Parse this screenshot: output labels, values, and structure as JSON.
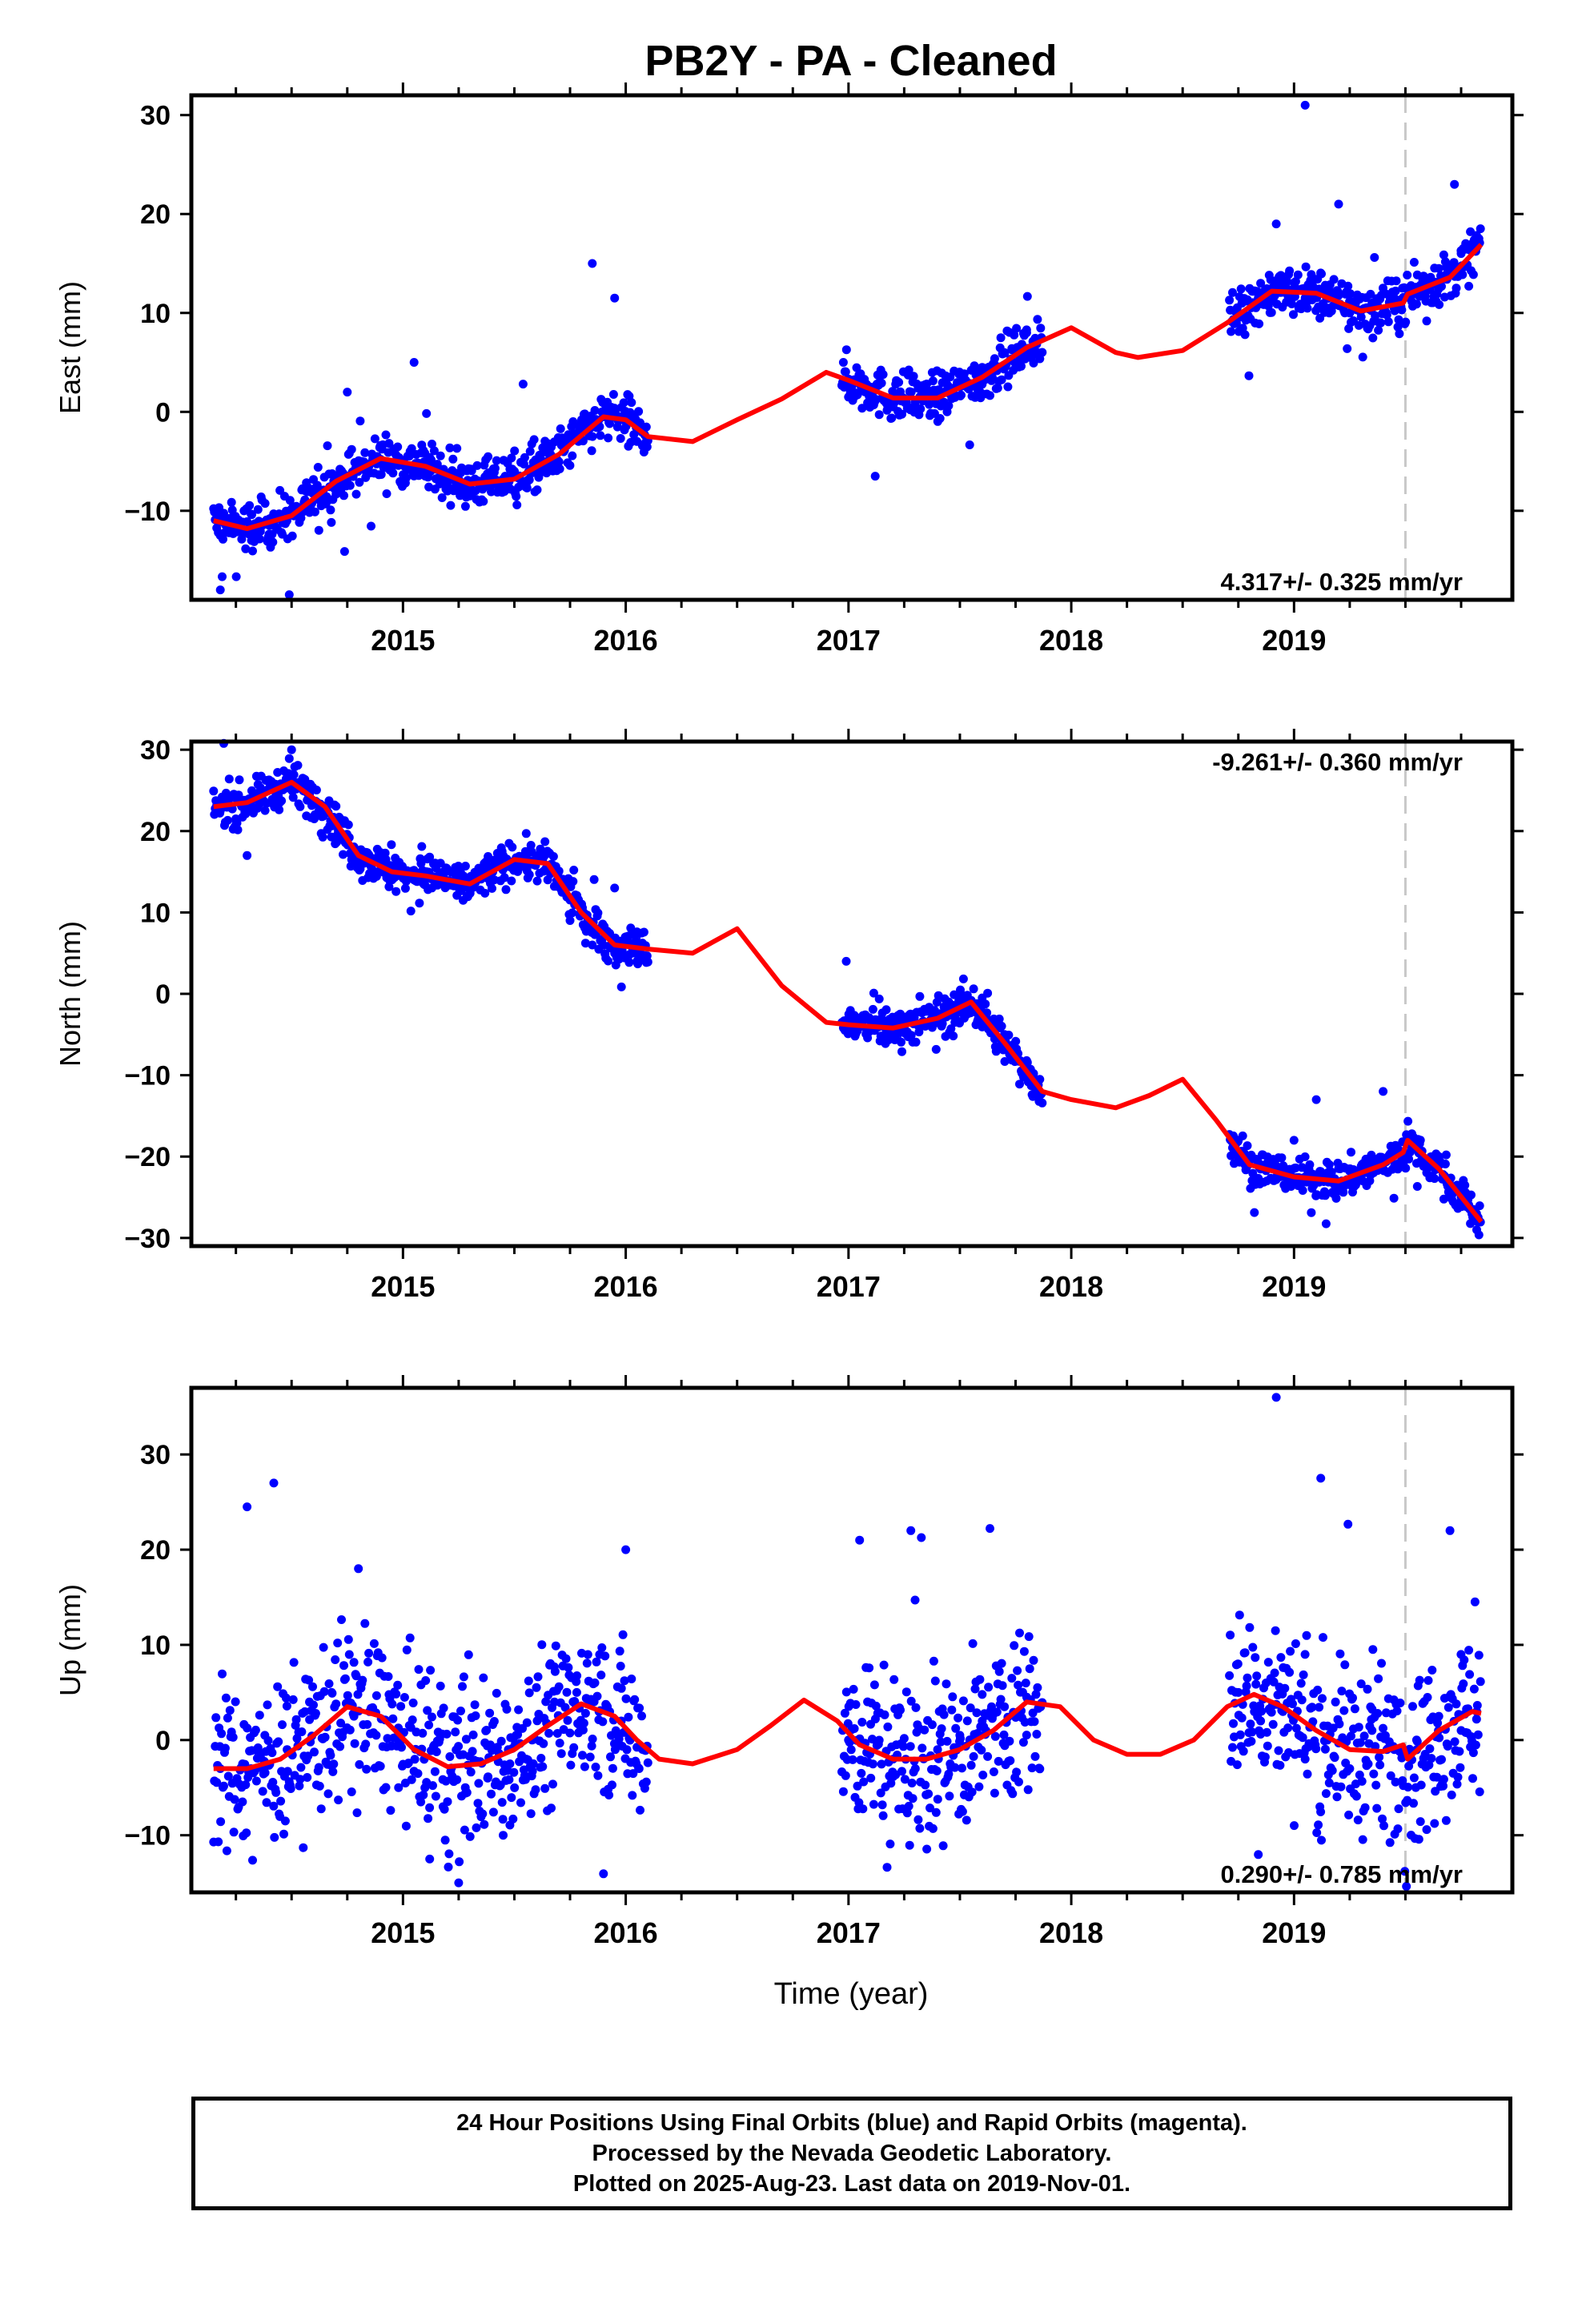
{
  "title": "PB2Y  - PA - Cleaned",
  "xlabel": "Time (year)",
  "footer": {
    "line1": "24 Hour Positions Using Final Orbits (blue) and Rapid Orbits (magenta).",
    "line2": "Processed by the Nevada Geodetic Laboratory.",
    "line3": "Plotted on 2025-Aug-23. Last data on 2019-Nov-01."
  },
  "colors": {
    "points": "#0000ff",
    "model": "#ff0000",
    "equipment_change": "#c8c8c8",
    "frame": "#000000"
  },
  "chart_data": [
    {
      "type": "scatter",
      "name": "east",
      "ylabel": "East (mm)",
      "rate_label": "4.317+/- 0.325 mm/yr",
      "rate_position": "bottom-right",
      "xlim": [
        2014.05,
        2019.98
      ],
      "ylim": [
        -19,
        32
      ],
      "yticks": [
        -10,
        0,
        10,
        20,
        30
      ],
      "xticks": [
        2015,
        2016,
        2017,
        2018,
        2019
      ],
      "vertical_line_x": 2019.5,
      "segments": [
        [
          2014.15,
          2016.1
        ],
        [
          2016.97,
          2017.87
        ],
        [
          2018.71,
          2019.84
        ]
      ],
      "model_line": {
        "name": "model",
        "x": [
          2014.15,
          2014.3,
          2014.5,
          2014.7,
          2014.9,
          2015.1,
          2015.3,
          2015.5,
          2015.7,
          2015.9,
          2016.0,
          2016.1,
          2016.3,
          2016.5,
          2016.7,
          2016.9,
          2017.0,
          2017.2,
          2017.4,
          2017.6,
          2017.8,
          2018.0,
          2018.2,
          2018.3,
          2018.5,
          2018.7,
          2018.9,
          2019.1,
          2019.3,
          2019.49,
          2019.51,
          2019.7,
          2019.84
        ],
        "y": [
          -11.0,
          -11.8,
          -10.5,
          -7.0,
          -4.7,
          -5.5,
          -7.3,
          -6.8,
          -4.3,
          -0.5,
          -0.8,
          -2.5,
          -3.0,
          -0.8,
          1.3,
          4.0,
          3.2,
          1.4,
          1.4,
          3.5,
          6.5,
          8.5,
          6.0,
          5.5,
          6.2,
          9.0,
          12.2,
          12.0,
          10.2,
          11.0,
          11.9,
          13.6,
          16.9
        ]
      },
      "points": {
        "name": "daily positions",
        "x": [
          2014.18,
          2014.25,
          2014.32,
          2014.4,
          2014.5,
          2014.6,
          2014.7,
          2014.8,
          2014.9,
          2015.0,
          2015.1,
          2015.2,
          2015.3,
          2015.4,
          2015.5,
          2015.6,
          2015.7,
          2015.8,
          2015.9,
          2016.0,
          2016.08,
          2014.18,
          2014.75,
          2015.05,
          2015.85,
          2015.95,
          2017.0,
          2017.1,
          2017.2,
          2017.3,
          2017.4,
          2017.5,
          2017.6,
          2017.7,
          2017.8,
          2017.12,
          2018.75,
          2018.85,
          2018.95,
          2019.05,
          2019.15,
          2019.25,
          2019.35,
          2019.45,
          2019.55,
          2019.65,
          2019.75,
          2019.82,
          2018.92,
          2019.05,
          2019.2,
          2019.72
        ],
        "y": [
          -12.5,
          -11.0,
          -13.0,
          -11.5,
          -10.0,
          -8.0,
          -6.5,
          -5.5,
          -4.8,
          -5.0,
          -6.5,
          -8.0,
          -8.5,
          -7.0,
          -6.0,
          -5.0,
          -3.0,
          -1.5,
          -0.5,
          -1.0,
          -2.0,
          -18.0,
          2.0,
          5.0,
          15.0,
          11.5,
          1.5,
          2.5,
          0.5,
          1.0,
          1.5,
          2.5,
          4.5,
          6.0,
          8.0,
          -6.5,
          10.0,
          13.0,
          12.5,
          11.5,
          10.5,
          10.0,
          11.0,
          11.5,
          12.5,
          14.5,
          16.0,
          17.0,
          19.0,
          31.0,
          21.0,
          23.0
        ]
      }
    },
    {
      "type": "scatter",
      "name": "north",
      "ylabel": "North (mm)",
      "rate_label": "-9.261+/- 0.360 mm/yr",
      "rate_position": "top-right",
      "xlim": [
        2014.05,
        2019.98
      ],
      "ylim": [
        -31,
        31
      ],
      "yticks": [
        -30,
        -20,
        -10,
        0,
        10,
        20,
        30
      ],
      "xticks": [
        2015,
        2016,
        2017,
        2018,
        2019
      ],
      "vertical_line_x": 2019.5,
      "segments": [
        [
          2014.15,
          2016.1
        ],
        [
          2016.97,
          2017.87
        ],
        [
          2018.71,
          2019.84
        ]
      ],
      "model_line": {
        "name": "model",
        "x": [
          2014.15,
          2014.3,
          2014.5,
          2014.65,
          2014.8,
          2014.95,
          2015.1,
          2015.3,
          2015.5,
          2015.65,
          2015.8,
          2015.95,
          2016.1,
          2016.3,
          2016.5,
          2016.7,
          2016.9,
          2017.0,
          2017.2,
          2017.4,
          2017.55,
          2017.7,
          2017.87,
          2018.0,
          2018.2,
          2018.35,
          2018.5,
          2018.65,
          2018.8,
          2019.0,
          2019.2,
          2019.4,
          2019.49,
          2019.51,
          2019.65,
          2019.84
        ],
        "y": [
          23.0,
          23.5,
          26.0,
          23.0,
          17.0,
          15.0,
          14.5,
          13.5,
          16.5,
          16.0,
          10.0,
          6.0,
          5.5,
          5.0,
          8.0,
          1.0,
          -3.5,
          -3.8,
          -4.2,
          -3.0,
          -1.0,
          -6.0,
          -12.0,
          -13.0,
          -14.0,
          -12.5,
          -10.5,
          -15.5,
          -21.0,
          -22.5,
          -23.0,
          -21.0,
          -19.5,
          -18.0,
          -21.5,
          -28.0
        ]
      },
      "points": {
        "name": "daily positions",
        "x": [
          2014.18,
          2014.25,
          2014.35,
          2014.45,
          2014.55,
          2014.65,
          2014.75,
          2014.85,
          2014.95,
          2015.05,
          2015.15,
          2015.25,
          2015.35,
          2015.45,
          2015.55,
          2015.65,
          2015.75,
          2015.85,
          2015.95,
          2016.05,
          2014.5,
          2014.3,
          2015.95,
          2017.0,
          2017.1,
          2017.2,
          2017.3,
          2017.4,
          2017.5,
          2017.6,
          2017.7,
          2017.8,
          2017.85,
          2016.99,
          2018.75,
          2018.85,
          2018.95,
          2019.05,
          2019.15,
          2019.25,
          2019.35,
          2019.45,
          2019.55,
          2019.65,
          2019.75,
          2019.82,
          2019.1,
          2019.4,
          2019.0
        ],
        "y": [
          22.5,
          21.5,
          24.0,
          25.0,
          26.5,
          22.5,
          19.0,
          16.0,
          14.5,
          14.0,
          13.5,
          13.0,
          15.0,
          17.0,
          17.5,
          14.0,
          9.0,
          6.0,
          5.0,
          4.0,
          30.0,
          17.0,
          13.0,
          -3.0,
          -4.5,
          -4.0,
          -3.5,
          -2.5,
          -1.5,
          -0.5,
          -5.0,
          -9.5,
          -12.5,
          4.0,
          -18.0,
          -21.0,
          -22.0,
          -22.5,
          -22.0,
          -21.5,
          -20.5,
          -19.0,
          -18.0,
          -20.0,
          -25.0,
          -29.0,
          -13.0,
          -12.0,
          -18.0
        ]
      }
    },
    {
      "type": "scatter",
      "name": "up",
      "ylabel": "Up (mm)",
      "rate_label": "0.290+/- 0.785 mm/yr",
      "rate_position": "bottom-right",
      "xlim": [
        2014.05,
        2019.98
      ],
      "ylim": [
        -16,
        37
      ],
      "yticks": [
        -10,
        0,
        10,
        20,
        30
      ],
      "xticks": [
        2015,
        2016,
        2017,
        2018,
        2019
      ],
      "vertical_line_x": 2019.5,
      "segments": [
        [
          2014.15,
          2016.1
        ],
        [
          2016.97,
          2017.87
        ],
        [
          2018.71,
          2019.84
        ]
      ],
      "model_line": {
        "name": "model",
        "x": [
          2014.15,
          2014.3,
          2014.45,
          2014.6,
          2014.75,
          2014.9,
          2015.05,
          2015.2,
          2015.35,
          2015.5,
          2015.65,
          2015.8,
          2015.95,
          2016.05,
          2016.15,
          2016.3,
          2016.5,
          2016.65,
          2016.8,
          2016.95,
          2017.05,
          2017.2,
          2017.35,
          2017.5,
          2017.65,
          2017.8,
          2017.95,
          2018.1,
          2018.25,
          2018.4,
          2018.55,
          2018.7,
          2018.82,
          2018.95,
          2019.1,
          2019.25,
          2019.4,
          2019.49,
          2019.51,
          2019.65,
          2019.8,
          2019.84
        ],
        "y": [
          -3.0,
          -3.0,
          -2.0,
          0.5,
          3.5,
          2.5,
          -1.0,
          -2.8,
          -2.5,
          -1.0,
          1.5,
          3.8,
          2.5,
          0.0,
          -2.0,
          -2.5,
          -1.0,
          1.5,
          4.2,
          2.0,
          -0.5,
          -2.0,
          -2.0,
          -1.0,
          1.0,
          4.0,
          3.5,
          0.0,
          -1.5,
          -1.5,
          0.0,
          3.5,
          4.8,
          3.5,
          1.0,
          -1.0,
          -1.2,
          -0.5,
          -2.0,
          1.0,
          3.0,
          2.8
        ]
      },
      "points": {
        "name": "daily positions",
        "x": [
          2014.18,
          2014.28,
          2014.38,
          2014.48,
          2014.58,
          2014.68,
          2014.78,
          2014.88,
          2014.98,
          2015.08,
          2015.18,
          2015.28,
          2015.38,
          2015.48,
          2015.58,
          2015.68,
          2015.78,
          2015.88,
          2015.98,
          2016.06,
          2014.3,
          2014.42,
          2014.8,
          2015.12,
          2015.25,
          2015.45,
          2016.0,
          2017.0,
          2017.1,
          2017.2,
          2017.3,
          2017.4,
          2017.5,
          2017.6,
          2017.7,
          2017.8,
          2017.05,
          2017.28,
          2018.75,
          2018.85,
          2018.95,
          2019.05,
          2019.15,
          2019.25,
          2019.35,
          2019.45,
          2019.55,
          2019.65,
          2019.75,
          2019.82,
          2018.92,
          2019.12,
          2019.7
        ],
        "y": [
          -3.0,
          -2.5,
          0.5,
          -1.0,
          4.0,
          5.0,
          2.5,
          0.5,
          -5.0,
          -6.5,
          -7.0,
          -5.0,
          -4.0,
          -2.5,
          0.0,
          4.0,
          5.0,
          3.0,
          2.0,
          -3.0,
          24.5,
          27.0,
          18.0,
          -12.5,
          -15.0,
          -10.0,
          20.0,
          0.0,
          -4.0,
          -2.0,
          -3.0,
          -1.0,
          0.5,
          2.0,
          3.5,
          4.5,
          21.0,
          22.0,
          5.0,
          2.0,
          3.0,
          -2.0,
          0.0,
          -3.0,
          1.0,
          -1.0,
          0.0,
          2.5,
          1.0,
          3.0,
          36.0,
          27.5,
          22.0
        ]
      }
    }
  ]
}
